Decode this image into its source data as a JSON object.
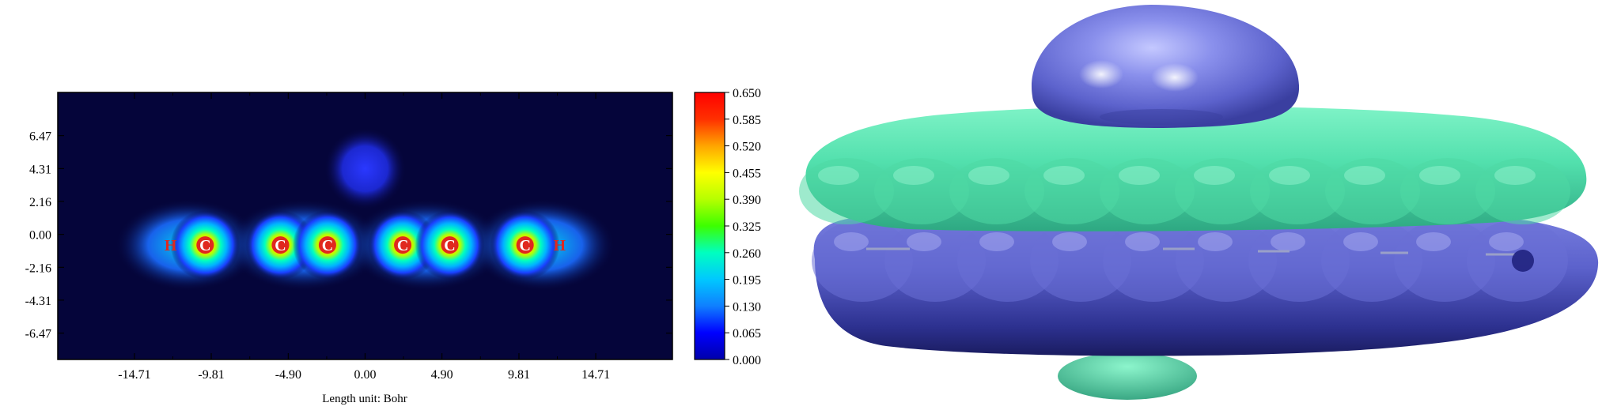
{
  "contour_map": {
    "y_ticks": [
      "6.47",
      "4.31",
      "2.16",
      "0.00",
      "-2.16",
      "-4.31",
      "-6.47"
    ],
    "x_ticks": [
      "-14.71",
      "-9.81",
      "-4.90",
      "0.00",
      "4.90",
      "9.81",
      "14.71"
    ],
    "x_label": "Length unit: Bohr",
    "atoms": [
      {
        "symbol": "H",
        "x": -12.4,
        "y": -0.7,
        "color": "#e0281e"
      },
      {
        "symbol": "C",
        "x": -10.2,
        "y": -0.7,
        "color": "#ffffff"
      },
      {
        "symbol": "C",
        "x": -5.4,
        "y": -0.7,
        "color": "#ffffff"
      },
      {
        "symbol": "C",
        "x": -2.4,
        "y": -0.7,
        "color": "#ffffff"
      },
      {
        "symbol": "C",
        "x": 2.4,
        "y": -0.7,
        "color": "#ffffff"
      },
      {
        "symbol": "C",
        "x": 5.4,
        "y": -0.7,
        "color": "#ffffff"
      },
      {
        "symbol": "C",
        "x": 10.2,
        "y": -0.7,
        "color": "#ffffff"
      },
      {
        "symbol": "H",
        "x": 12.4,
        "y": -0.7,
        "color": "#e0281e"
      }
    ],
    "metal_center": {
      "x": 0.0,
      "y": 4.3
    },
    "background_color": "#05053a"
  },
  "colorbar": {
    "ticks": [
      "0.650",
      "0.585",
      "0.520",
      "0.455",
      "0.390",
      "0.325",
      "0.260",
      "0.195",
      "0.130",
      "0.065",
      "0.000"
    ],
    "colors": [
      "#0000aa",
      "#0000ff",
      "#0f7fff",
      "#00c8ff",
      "#00ffc0",
      "#3cff00",
      "#b6ff00",
      "#ffff00",
      "#ffa500",
      "#ff3000",
      "#ff0000"
    ]
  },
  "isosurface": {
    "colors": {
      "blue": "#6b72d8",
      "green": "#5ee8b4",
      "dark_blue": "#1c1e7a"
    }
  }
}
